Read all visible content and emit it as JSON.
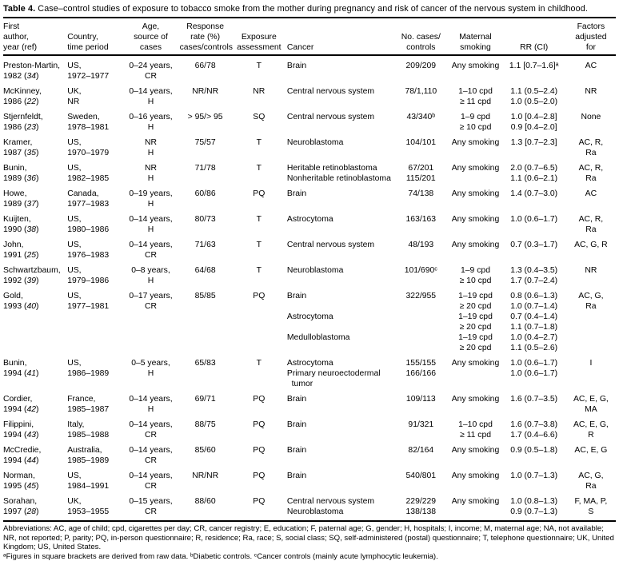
{
  "title": {
    "label": "Table 4.",
    "caption": " Case–control studies of exposure to tobacco smoke from the mother during pregnancy and risk of cancer of the nervous system in childhood."
  },
  "header": {
    "author": [
      "First",
      "author,",
      "year (ref)"
    ],
    "country": [
      "Country,",
      "time period"
    ],
    "age": [
      "Age,",
      "source of",
      "cases"
    ],
    "response": [
      "Response",
      "rate (%)",
      "cases/controls"
    ],
    "exposure": [
      "Exposure",
      "assessment"
    ],
    "cancer": [
      "Cancer"
    ],
    "cases": [
      "No. cases/",
      "controls"
    ],
    "smoking": [
      "Maternal",
      "smoking"
    ],
    "rr": [
      "RR (CI)"
    ],
    "adjusted": [
      "Factors",
      "adjusted",
      "for"
    ]
  },
  "table": {
    "rows": [
      {
        "author": "Preston-Martin,",
        "year_parts": [
          "1982 (",
          "34",
          ")"
        ],
        "country": "US,",
        "period": "1972–1977",
        "age": "0–24 years,",
        "source": "CR",
        "response": "66/78",
        "exposure": "T",
        "lines": [
          {
            "cancer": "Brain",
            "cases": "209/209",
            "smoking": "Any smoking",
            "rr": "1.1 [0.7–1.6]ᵃ",
            "adjusted": "AC"
          }
        ]
      },
      {
        "author": "McKinney,",
        "year_parts": [
          "1986 (",
          "22",
          ")"
        ],
        "country": "UK,",
        "period": "NR",
        "age": "0–14 years,",
        "source": "H",
        "response": "NR/NR",
        "exposure": "NR",
        "lines": [
          {
            "cancer": "Central nervous system",
            "cases": "78/1,110",
            "smoking": "1–10 cpd",
            "rr": "1.1 (0.5–2.4)",
            "adjusted": "NR"
          },
          {
            "cancer": "",
            "cases": "",
            "smoking": "≥ 11 cpd",
            "rr": "1.0 (0.5–2.0)",
            "adjusted": ""
          }
        ]
      },
      {
        "author": "Stjernfeldt,",
        "year_parts": [
          "1986 (",
          "23",
          ")"
        ],
        "country": "Sweden,",
        "period": "1978–1981",
        "age": "0–16 years,",
        "source": "H",
        "response": "> 95/> 95",
        "exposure": "SQ",
        "lines": [
          {
            "cancer": "Central nervous system",
            "cases": "43/340ᵇ",
            "smoking": "1–9 cpd",
            "rr": "1.0 [0.4–2.8]",
            "adjusted": "None"
          },
          {
            "cancer": "",
            "cases": "",
            "smoking": "≥ 10 cpd",
            "rr": "0.9 [0.4–2.0]",
            "adjusted": ""
          }
        ]
      },
      {
        "author": "Kramer,",
        "year_parts": [
          "1987 (",
          "35",
          ")"
        ],
        "country": "US,",
        "period": "1970–1979",
        "age": "NR",
        "source": "H",
        "response": "75/57",
        "exposure": "T",
        "lines": [
          {
            "cancer": "Neuroblastoma",
            "cases": "104/101",
            "smoking": "Any smoking",
            "rr": "1.3 [0.7–2.3]",
            "adjusted": "AC, R,"
          },
          {
            "cancer": "",
            "cases": "",
            "smoking": "",
            "rr": "",
            "adjusted": "Ra"
          }
        ]
      },
      {
        "author": "Bunin,",
        "year_parts": [
          "1989 (",
          "36",
          ")"
        ],
        "country": "US,",
        "period": "1982–1985",
        "age": "NR",
        "source": "H",
        "response": "71/78",
        "exposure": "T",
        "lines": [
          {
            "cancer": "Heritable retinoblastoma",
            "cases": "67/201",
            "smoking": "Any smoking",
            "rr": "2.0 (0.7–6.5)",
            "adjusted": "AC, R,"
          },
          {
            "cancer": "Nonheritable retinoblastoma",
            "cases": "115/201",
            "smoking": "",
            "rr": "1.1 (0.6–2.1)",
            "adjusted": "Ra"
          }
        ]
      },
      {
        "author": "Howe,",
        "year_parts": [
          "1989 (",
          "37",
          ")"
        ],
        "country": "Canada,",
        "period": "1977–1983",
        "age": "0–19 years,",
        "source": "H",
        "response": "60/86",
        "exposure": "PQ",
        "lines": [
          {
            "cancer": "Brain",
            "cases": "74/138",
            "smoking": "Any smoking",
            "rr": "1.4 (0.7–3.0)",
            "adjusted": "AC"
          }
        ]
      },
      {
        "author": "Kuijten,",
        "year_parts": [
          "1990 (",
          "38",
          ")"
        ],
        "country": "US,",
        "period": "1980–1986",
        "age": "0–14 years,",
        "source": "H",
        "response": "80/73",
        "exposure": "T",
        "lines": [
          {
            "cancer": "Astrocytoma",
            "cases": "163/163",
            "smoking": "Any smoking",
            "rr": "1.0 (0.6–1.7)",
            "adjusted": "AC, R,"
          },
          {
            "cancer": "",
            "cases": "",
            "smoking": "",
            "rr": "",
            "adjusted": "Ra"
          }
        ]
      },
      {
        "author": "John,",
        "year_parts": [
          "1991 (",
          "25",
          ")"
        ],
        "country": "US,",
        "period": "1976–1983",
        "age": "0–14 years,",
        "source": "CR",
        "response": "71/63",
        "exposure": "T",
        "lines": [
          {
            "cancer": "Central nervous system",
            "cases": "48/193",
            "smoking": "Any smoking",
            "rr": "0.7 (0.3–1.7)",
            "adjusted": "AC, G, R"
          }
        ]
      },
      {
        "author": "Schwartzbaum,",
        "year_parts": [
          "1992 (",
          "39",
          ")"
        ],
        "country": "US,",
        "period": "1979–1986",
        "age": "0–8 years,",
        "source": "H",
        "response": "64/68",
        "exposure": "T",
        "lines": [
          {
            "cancer": "Neuroblastoma",
            "cases": "101/690ᶜ",
            "smoking": "1–9 cpd",
            "rr": "1.3 (0.4–3.5)",
            "adjusted": "NR"
          },
          {
            "cancer": "",
            "cases": "",
            "smoking": "≥ 10 cpd",
            "rr": "1.7 (0.7–2.4)",
            "adjusted": ""
          }
        ]
      },
      {
        "author": "Gold,",
        "year_parts": [
          "1993 (",
          "40",
          ")"
        ],
        "country": "US,",
        "period": "1977–1981",
        "age": "0–17 years,",
        "source": "CR",
        "response": "85/85",
        "exposure": "PQ",
        "lines": [
          {
            "cancer": "Brain",
            "cases": "322/955",
            "smoking": "1–19 cpd",
            "rr": "0.8 (0.6–1.3)",
            "adjusted": "AC, G,"
          },
          {
            "cancer": "",
            "cases": "",
            "smoking": "≥ 20 cpd",
            "rr": "1.0 (0.7–1.4)",
            "adjusted": "Ra"
          },
          {
            "cancer": "Astrocytoma",
            "cases": "",
            "smoking": "1–19 cpd",
            "rr": "0.7 (0.4–1.4)",
            "adjusted": ""
          },
          {
            "cancer": "",
            "cases": "",
            "smoking": "≥ 20 cpd",
            "rr": "1.1 (0.7–1.8)",
            "adjusted": ""
          },
          {
            "cancer": "Medulloblastoma",
            "cases": "",
            "smoking": "1–19 cpd",
            "rr": "1.0 (0.4–2.7)",
            "adjusted": ""
          },
          {
            "cancer": "",
            "cases": "",
            "smoking": "≥ 20 cpd",
            "rr": "1.1 (0.5–2.6)",
            "adjusted": ""
          }
        ]
      },
      {
        "author": "Bunin,",
        "year_parts": [
          "1994 (",
          "41",
          ")"
        ],
        "country": "US,",
        "period": "1986–1989",
        "age": "0–5 years,",
        "source": "H",
        "response": "65/83",
        "exposure": "T",
        "lines": [
          {
            "cancer": "Astrocytoma",
            "cases": "155/155",
            "smoking": "Any smoking",
            "rr": "1.0 (0.6–1.7)",
            "adjusted": "I"
          },
          {
            "cancer": "Primary neuroectodermal",
            "cases": "166/166",
            "smoking": "",
            "rr": "1.0 (0.6–1.7)",
            "adjusted": ""
          },
          {
            "cancer": "  tumor",
            "cases": "",
            "smoking": "",
            "rr": "",
            "adjusted": ""
          }
        ]
      },
      {
        "author": "Cordier,",
        "year_parts": [
          "1994 (",
          "42",
          ")"
        ],
        "country": "France,",
        "period": "1985–1987",
        "age": "0–14 years,",
        "source": "H",
        "response": "69/71",
        "exposure": "PQ",
        "lines": [
          {
            "cancer": "Brain",
            "cases": "109/113",
            "smoking": "Any smoking",
            "rr": "1.6 (0.7–3.5)",
            "adjusted": "AC, E, G,"
          },
          {
            "cancer": "",
            "cases": "",
            "smoking": "",
            "rr": "",
            "adjusted": "MA"
          }
        ]
      },
      {
        "author": "Filippini,",
        "year_parts": [
          "1994 (",
          "43",
          ")"
        ],
        "country": "Italy,",
        "period": "1985–1988",
        "age": "0–14 years,",
        "source": "CR",
        "response": "88/75",
        "exposure": "PQ",
        "lines": [
          {
            "cancer": "Brain",
            "cases": "91/321",
            "smoking": "1–10 cpd",
            "rr": "1.6 (0.7–3.8)",
            "adjusted": "AC, E, G,"
          },
          {
            "cancer": "",
            "cases": "",
            "smoking": "≥ 11 cpd",
            "rr": "1.7 (0.4–6.6)",
            "adjusted": "R"
          }
        ]
      },
      {
        "author": "McCredie,",
        "year_parts": [
          "1994 (",
          "44",
          ")"
        ],
        "country": "Australia,",
        "period": "1985–1989",
        "age": "0–14 years,",
        "source": "CR",
        "response": "85/60",
        "exposure": "PQ",
        "lines": [
          {
            "cancer": "Brain",
            "cases": "82/164",
            "smoking": "Any smoking",
            "rr": "0.9 (0.5–1.8)",
            "adjusted": "AC, E, G"
          }
        ]
      },
      {
        "author": "Norman,",
        "year_parts": [
          "1995 (",
          "45",
          ")"
        ],
        "country": "US,",
        "period": "1984–1991",
        "age": "0–14 years,",
        "source": "CR",
        "response": "NR/NR",
        "exposure": "PQ",
        "lines": [
          {
            "cancer": "Brain",
            "cases": "540/801",
            "smoking": "Any smoking",
            "rr": "1.0 (0.7–1.3)",
            "adjusted": "AC, G,"
          },
          {
            "cancer": "",
            "cases": "",
            "smoking": "",
            "rr": "",
            "adjusted": "Ra"
          }
        ]
      },
      {
        "author": "Sorahan,",
        "year_parts": [
          "1997 (",
          "28",
          ")"
        ],
        "country": "UK,",
        "period": "1953–1955",
        "age": "0–15 years,",
        "source": "CR",
        "response": "88/60",
        "exposure": "PQ",
        "lines": [
          {
            "cancer": "Central nervous system",
            "cases": "229/229",
            "smoking": "Any smoking",
            "rr": "1.0 (0.8–1.3)",
            "adjusted": "F, MA, P,"
          },
          {
            "cancer": "Neuroblastoma",
            "cases": "138/138",
            "smoking": "",
            "rr": "0.9 (0.7–1.3)",
            "adjusted": "S"
          }
        ]
      }
    ]
  },
  "footnotes": {
    "abbreviations": "Abbreviations: AC, age of child; cpd, cigarettes per day; CR, cancer registry; E, education; F, paternal age; G, gender; H, hospitals; I, income; M, maternal age; NA, not available; NR, not reported; P, parity; PQ, in-person questionnaire; R, residence; Ra, race; S, social class; SQ, self-administered (postal) questionnaire; T, telephone questionnaire; UK, United Kingdom; US, United States.",
    "notes": "ᵃFigures in square brackets are derived from raw data. ᵇDiabetic controls. ᶜCancer controls (mainly acute lymphocytic leukemia)."
  }
}
